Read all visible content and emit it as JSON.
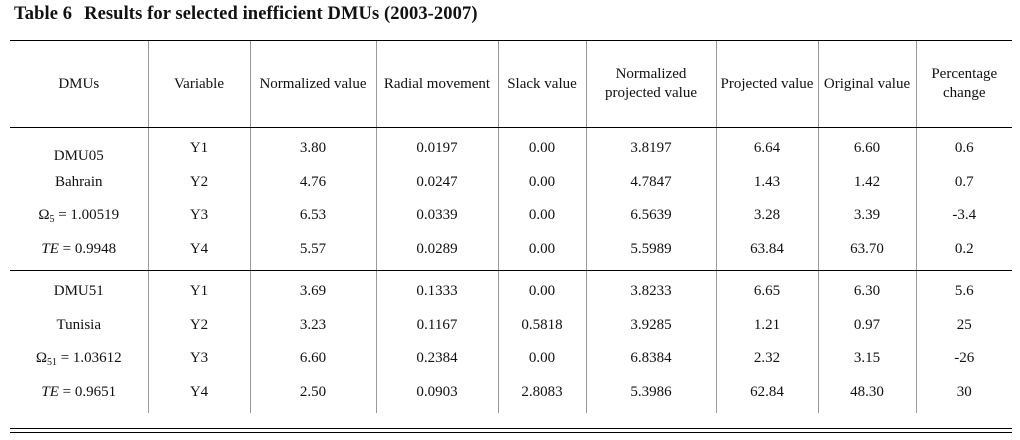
{
  "table": {
    "caption_number": "Table 6",
    "caption_title": "Results for selected inefficient DMUs (2003-2007)",
    "headers": {
      "dmus": "DMUs",
      "variable": "Variable",
      "normalized_value": "Normalized value",
      "radial_movement": "Radial movement",
      "slack_value": "Slack value",
      "normalized_projected_value": "Normalized projected value",
      "projected_value": "Projected value",
      "original_value": "Original value",
      "percentage_change": "Percentage change"
    },
    "blocks": [
      {
        "dmu_id": "DMU05",
        "country": "Bahrain",
        "omega_symbol": "Ω",
        "omega_sub": "5",
        "omega_value": " = 1.00519",
        "te_label": "TE",
        "te_value": " = 0.9948",
        "rows": [
          {
            "variable": "Y1",
            "normalized": "3.80",
            "radial": "0.0197",
            "slack": "0.00",
            "norm_projected": "3.8197",
            "projected": "6.64",
            "original": "6.60",
            "change": "0.6"
          },
          {
            "variable": "Y2",
            "normalized": "4.76",
            "radial": "0.0247",
            "slack": "0.00",
            "norm_projected": "4.7847",
            "projected": "1.43",
            "original": "1.42",
            "change": "0.7"
          },
          {
            "variable": "Y3",
            "normalized": "6.53",
            "radial": "0.0339",
            "slack": "0.00",
            "norm_projected": "6.5639",
            "projected": "3.28",
            "original": "3.39",
            "change": "-3.4"
          },
          {
            "variable": "Y4",
            "normalized": "5.57",
            "radial": "0.0289",
            "slack": "0.00",
            "norm_projected": "5.5989",
            "projected": "63.84",
            "original": "63.70",
            "change": "0.2"
          }
        ]
      },
      {
        "dmu_id": "DMU51",
        "country": "Tunisia",
        "omega_symbol": "Ω",
        "omega_sub": "51",
        "omega_value": " = 1.03612",
        "te_label": "TE",
        "te_value": " = 0.9651",
        "rows": [
          {
            "variable": "Y1",
            "normalized": "3.69",
            "radial": "0.1333",
            "slack": "0.00",
            "norm_projected": "3.8233",
            "projected": "6.65",
            "original": "6.30",
            "change": "5.6"
          },
          {
            "variable": "Y2",
            "normalized": "3.23",
            "radial": "0.1167",
            "slack": "0.5818",
            "norm_projected": "3.9285",
            "projected": "1.21",
            "original": "0.97",
            "change": "25"
          },
          {
            "variable": "Y3",
            "normalized": "6.60",
            "radial": "0.2384",
            "slack": "0.00",
            "norm_projected": "6.8384",
            "projected": "2.32",
            "original": "3.15",
            "change": "-26"
          },
          {
            "variable": "Y4",
            "normalized": "2.50",
            "radial": "0.0903",
            "slack": "2.8083",
            "norm_projected": "5.3986",
            "projected": "62.84",
            "original": "48.30",
            "change": "30"
          }
        ]
      }
    ]
  }
}
